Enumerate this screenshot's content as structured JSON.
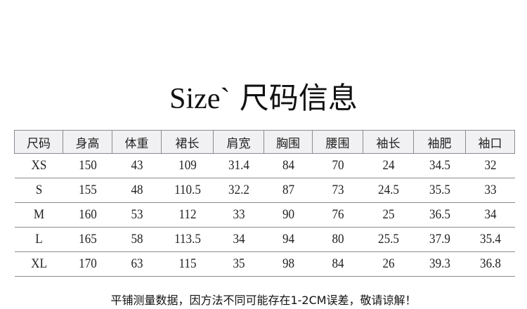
{
  "title": {
    "en": "Size`",
    "zh": "尺码信息"
  },
  "table": {
    "headers": [
      "尺码",
      "身高",
      "体重",
      "裙长",
      "肩宽",
      "胸围",
      "腰围",
      "袖长",
      "袖肥",
      "袖口"
    ],
    "rows": [
      [
        "XS",
        "150",
        "43",
        "109",
        "31.4",
        "84",
        "70",
        "24",
        "34.5",
        "32"
      ],
      [
        "S",
        "155",
        "48",
        "110.5",
        "32.2",
        "87",
        "73",
        "24.5",
        "35.5",
        "33"
      ],
      [
        "M",
        "160",
        "53",
        "112",
        "33",
        "90",
        "76",
        "25",
        "36.5",
        "34"
      ],
      [
        "L",
        "165",
        "58",
        "113.5",
        "34",
        "94",
        "80",
        "25.5",
        "37.9",
        "35.4"
      ],
      [
        "XL",
        "170",
        "63",
        "115",
        "35",
        "98",
        "84",
        "26",
        "39.3",
        "36.8"
      ]
    ]
  },
  "footer": "平铺测量数据，因方法不同可能存在1-2CM误差，敬请谅解！"
}
